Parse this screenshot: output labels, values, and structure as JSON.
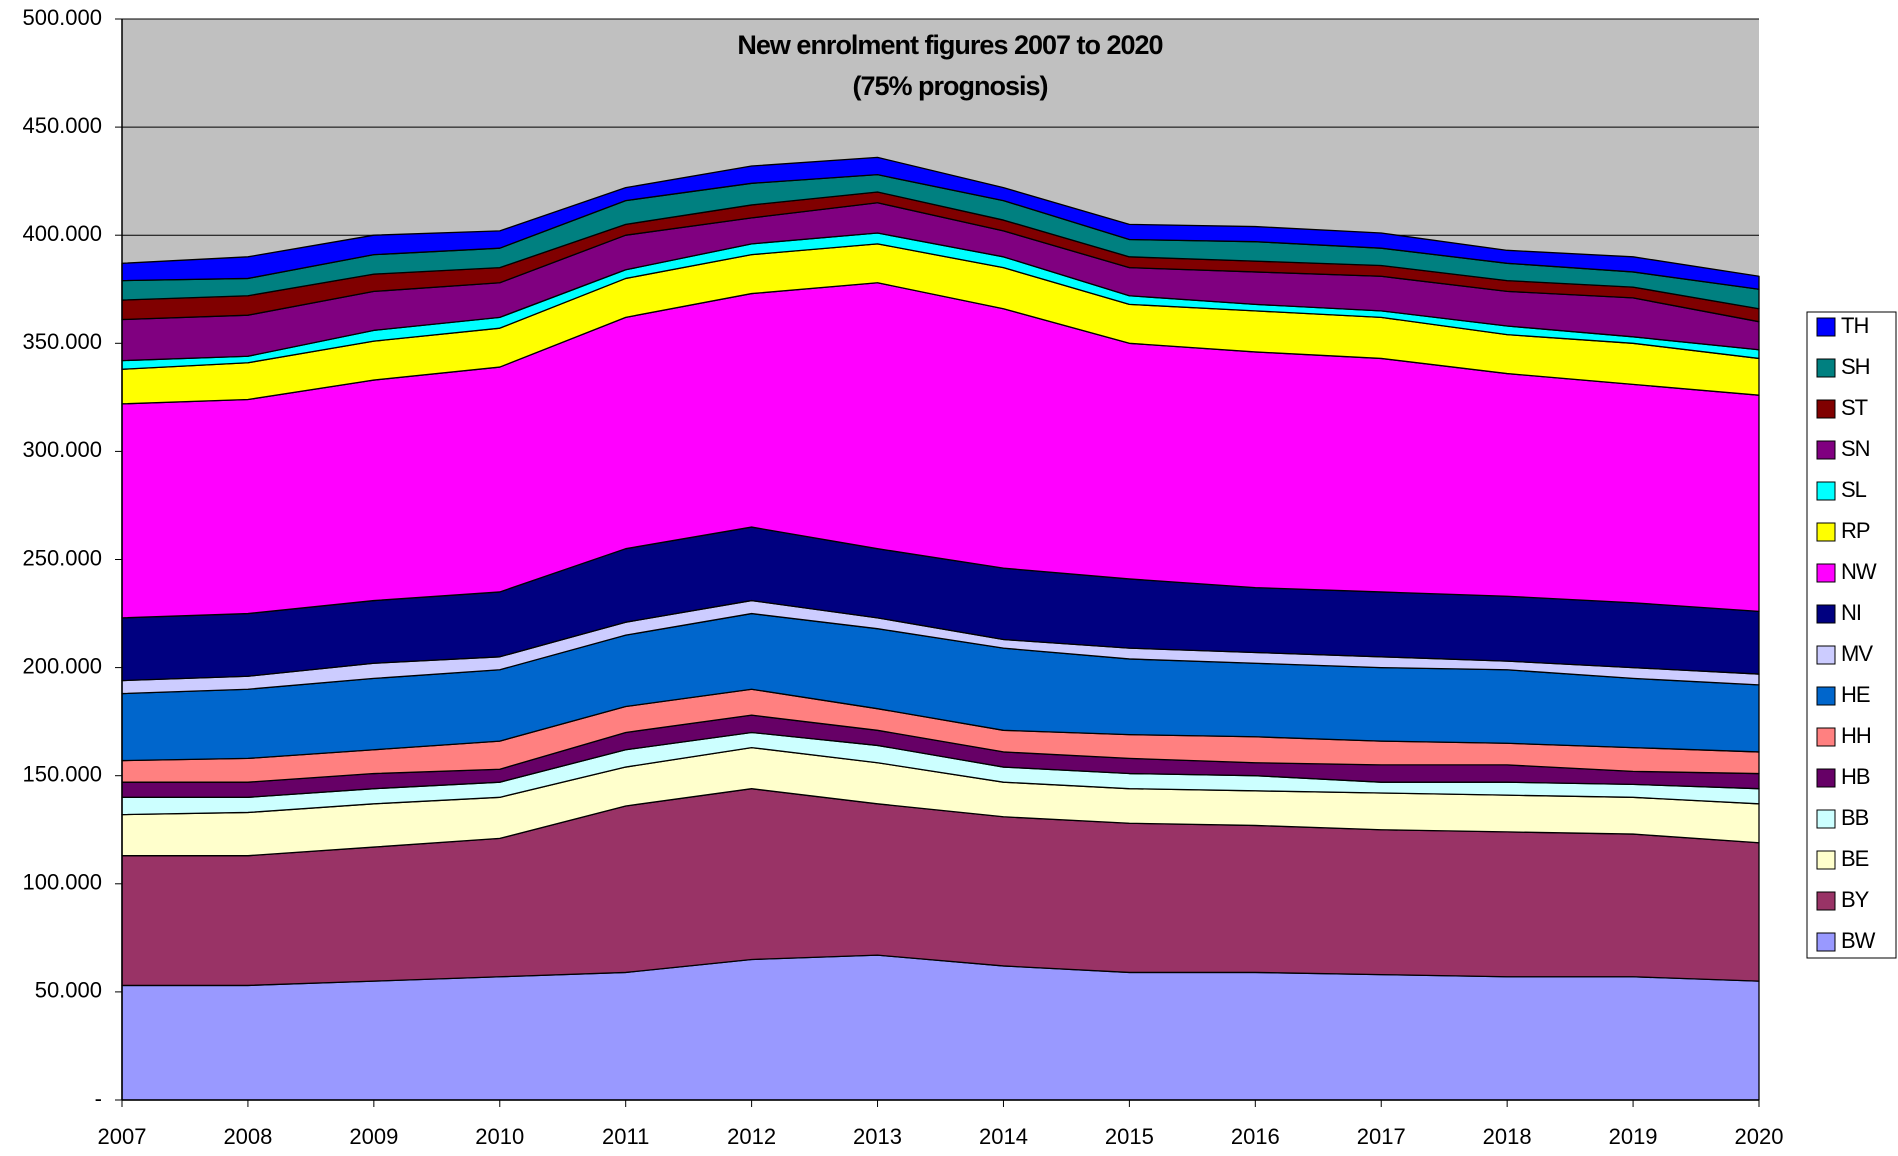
{
  "chart_data": {
    "type": "stacked-area",
    "title": "New enrolment figures 2007 to 2020",
    "subtitle": "(75% prognosis)",
    "categories": [
      "2007",
      "2008",
      "2009",
      "2010",
      "2011",
      "2012",
      "2013",
      "2014",
      "2015",
      "2016",
      "2017",
      "2018",
      "2019",
      "2020"
    ],
    "ylim": [
      0,
      500000
    ],
    "yticks": [
      {
        "value": 0,
        "label": "-"
      },
      {
        "value": 50000,
        "label": "50.000"
      },
      {
        "value": 100000,
        "label": "100.000"
      },
      {
        "value": 150000,
        "label": "150.000"
      },
      {
        "value": 200000,
        "label": "200.000"
      },
      {
        "value": 250000,
        "label": "250.000"
      },
      {
        "value": 300000,
        "label": "300.000"
      },
      {
        "value": 350000,
        "label": "350.000"
      },
      {
        "value": 400000,
        "label": "400.000"
      },
      {
        "value": 450000,
        "label": "450.000"
      },
      {
        "value": 500000,
        "label": "500.000"
      }
    ],
    "grid": true,
    "legend": "right",
    "series": [
      {
        "name": "BW",
        "color": "#9999ff",
        "values": [
          53000,
          53000,
          55000,
          57000,
          59000,
          65000,
          67000,
          62000,
          59000,
          59000,
          58000,
          57000,
          57000,
          55000
        ]
      },
      {
        "name": "BY",
        "color": "#993366",
        "values": [
          60000,
          60000,
          62000,
          64000,
          77000,
          79000,
          70000,
          69000,
          69000,
          68000,
          67000,
          67000,
          66000,
          64000
        ]
      },
      {
        "name": "BE",
        "color": "#ffffcc",
        "values": [
          19000,
          20000,
          20000,
          19000,
          18000,
          19000,
          19000,
          16000,
          16000,
          16000,
          17000,
          17000,
          17000,
          18000
        ]
      },
      {
        "name": "BB",
        "color": "#ccffff",
        "values": [
          8000,
          7000,
          7000,
          7000,
          8000,
          7000,
          8000,
          7000,
          7000,
          7000,
          5000,
          6000,
          6000,
          7000
        ]
      },
      {
        "name": "HB",
        "color": "#660066",
        "values": [
          7000,
          7000,
          7000,
          6000,
          8000,
          8000,
          7000,
          7000,
          7000,
          6000,
          8000,
          8000,
          6000,
          7000
        ]
      },
      {
        "name": "HH",
        "color": "#ff8080",
        "values": [
          10000,
          11000,
          11000,
          13000,
          12000,
          12000,
          10000,
          10000,
          11000,
          12000,
          11000,
          10000,
          11000,
          10000
        ]
      },
      {
        "name": "HE",
        "color": "#0066cc",
        "values": [
          31000,
          32000,
          33000,
          33000,
          33000,
          35000,
          37000,
          38000,
          35000,
          34000,
          34000,
          34000,
          32000,
          31000
        ]
      },
      {
        "name": "MV",
        "color": "#ccccff",
        "values": [
          6000,
          6000,
          7000,
          6000,
          6000,
          6000,
          5000,
          4000,
          5000,
          5000,
          5000,
          4000,
          5000,
          5000
        ]
      },
      {
        "name": "NI",
        "color": "#000080",
        "values": [
          29000,
          29000,
          29000,
          30000,
          34000,
          34000,
          32000,
          33000,
          32000,
          30000,
          30000,
          30000,
          30000,
          29000
        ]
      },
      {
        "name": "NW",
        "color": "#ff00ff",
        "values": [
          99000,
          99000,
          102000,
          104000,
          107000,
          108000,
          123000,
          120000,
          109000,
          109000,
          108000,
          103000,
          101000,
          100000
        ]
      },
      {
        "name": "RP",
        "color": "#ffff00",
        "values": [
          16000,
          17000,
          18000,
          18000,
          18000,
          18000,
          18000,
          19000,
          18000,
          19000,
          19000,
          18000,
          19000,
          17000
        ]
      },
      {
        "name": "SL",
        "color": "#00ffff",
        "values": [
          4000,
          3000,
          5000,
          5000,
          4000,
          5000,
          5000,
          5000,
          4000,
          3000,
          3000,
          4000,
          3000,
          4000
        ]
      },
      {
        "name": "SN",
        "color": "#800080",
        "values": [
          19000,
          19000,
          18000,
          16000,
          16000,
          12000,
          14000,
          12000,
          13000,
          15000,
          16000,
          16000,
          18000,
          13000
        ]
      },
      {
        "name": "ST",
        "color": "#800000",
        "values": [
          9000,
          9000,
          8000,
          7000,
          5000,
          6000,
          5000,
          5000,
          5000,
          5000,
          5000,
          5000,
          5000,
          6000
        ]
      },
      {
        "name": "SH",
        "color": "#008080",
        "values": [
          9000,
          8000,
          9000,
          9000,
          11000,
          10000,
          8000,
          9000,
          8000,
          9000,
          8000,
          8000,
          7000,
          9000
        ]
      },
      {
        "name": "TH",
        "color": "#0000ff",
        "values": [
          8000,
          10000,
          9000,
          8000,
          6000,
          8000,
          8000,
          6000,
          7000,
          7000,
          7000,
          6000,
          7000,
          6000
        ]
      }
    ]
  }
}
